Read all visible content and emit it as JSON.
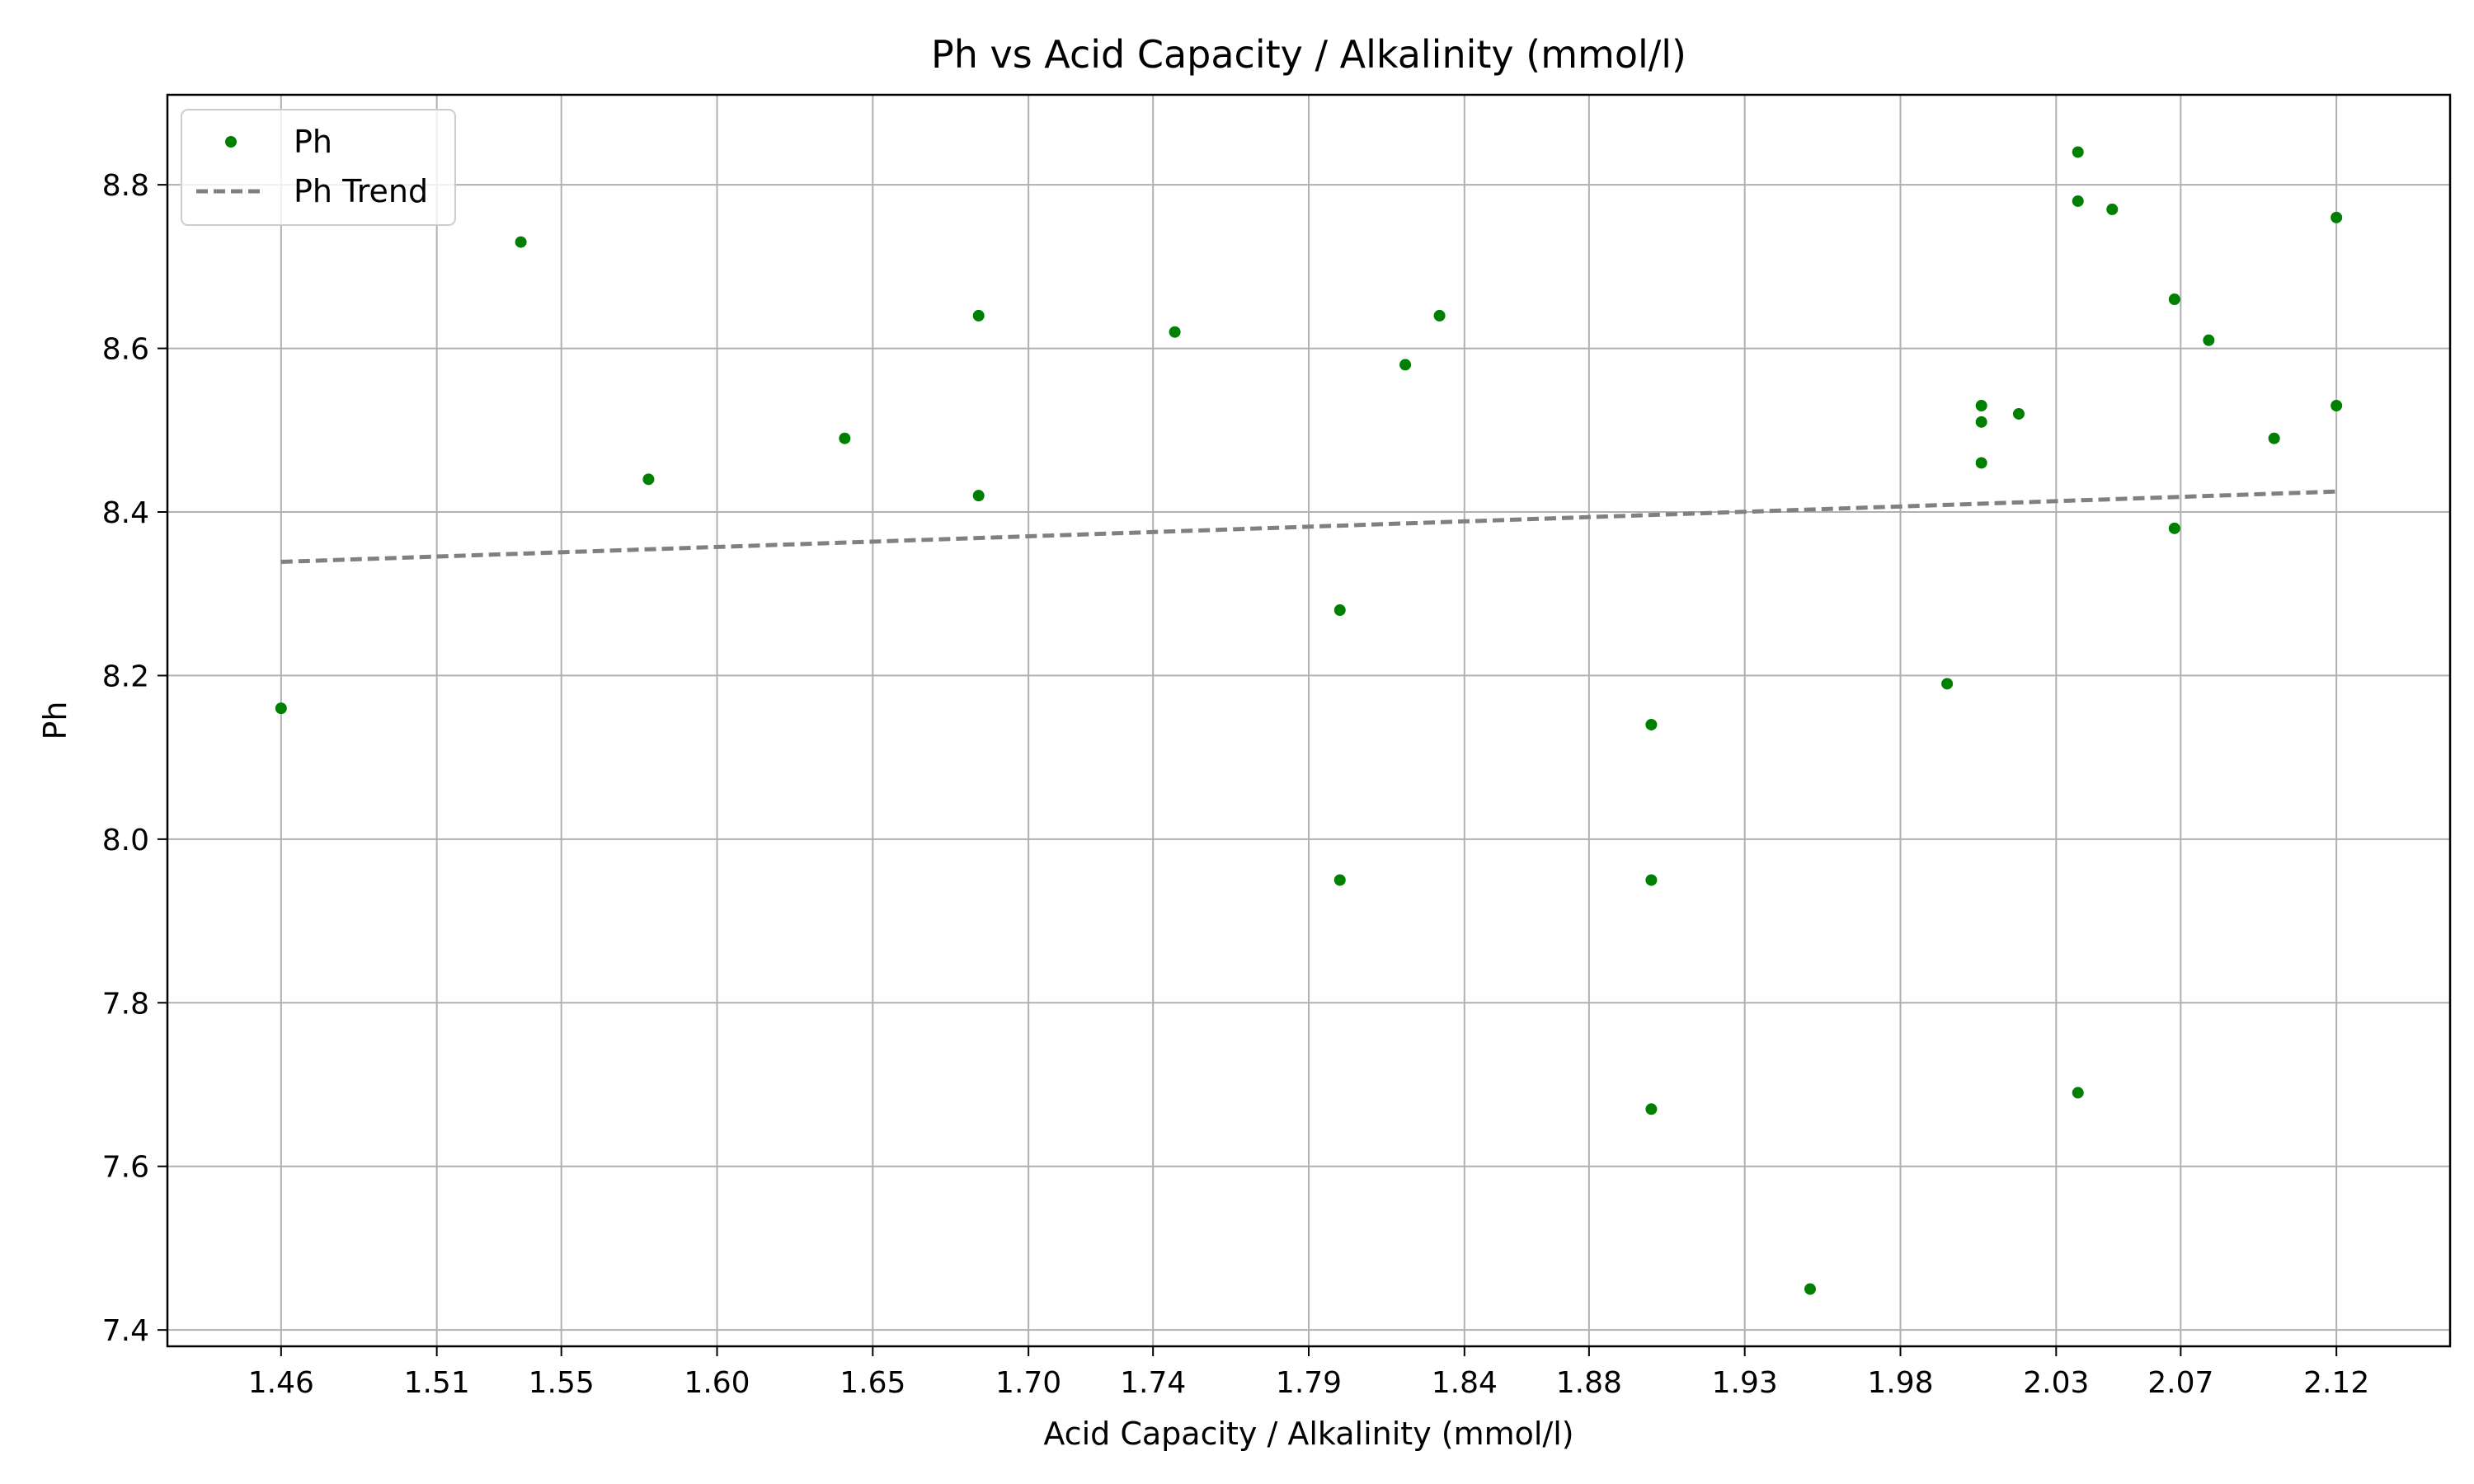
{
  "chart_data": {
    "type": "scatter",
    "title": "Ph vs Acid Capacity / Alkalinity (mmol/l)",
    "xlabel": "Acid Capacity / Alkalinity (mmol/l)",
    "ylabel": "Ph",
    "xlim": [
      1.4235,
      2.1565
    ],
    "ylim": [
      7.38,
      8.91
    ],
    "xticks": [
      1.46,
      1.51,
      1.55,
      1.6,
      1.65,
      1.7,
      1.74,
      1.79,
      1.84,
      1.88,
      1.93,
      1.98,
      2.03,
      2.07,
      2.12
    ],
    "xtick_labels": [
      "1.46",
      "1.51",
      "1.55",
      "1.60",
      "1.65",
      "1.70",
      "1.74",
      "1.79",
      "1.84",
      "1.88",
      "1.93",
      "1.98",
      "2.03",
      "2.07",
      "2.12"
    ],
    "yticks": [
      7.4,
      7.6,
      7.8,
      8.0,
      8.2,
      8.4,
      8.6,
      8.8
    ],
    "ytick_labels": [
      "7.4",
      "7.6",
      "7.8",
      "8.0",
      "8.2",
      "8.4",
      "8.6",
      "8.8"
    ],
    "grid": true,
    "legend_position": "top-left",
    "series": [
      {
        "name": "Ph",
        "kind": "scatter",
        "color": "#008000",
        "points": [
          [
            1.46,
            8.16
          ],
          [
            1.537,
            8.73
          ],
          [
            1.578,
            8.44
          ],
          [
            1.641,
            8.49
          ],
          [
            1.684,
            8.64
          ],
          [
            1.684,
            8.42
          ],
          [
            1.747,
            8.62
          ],
          [
            1.8,
            8.28
          ],
          [
            1.8,
            7.95
          ],
          [
            1.821,
            8.58
          ],
          [
            1.832,
            8.64
          ],
          [
            1.9,
            8.14
          ],
          [
            1.9,
            7.95
          ],
          [
            1.9,
            7.67
          ],
          [
            1.951,
            7.45
          ],
          [
            1.995,
            8.19
          ],
          [
            2.006,
            8.53
          ],
          [
            2.006,
            8.51
          ],
          [
            2.006,
            8.46
          ],
          [
            2.018,
            8.52
          ],
          [
            2.037,
            8.84
          ],
          [
            2.037,
            8.78
          ],
          [
            2.037,
            7.69
          ],
          [
            2.048,
            8.77
          ],
          [
            2.068,
            8.66
          ],
          [
            2.068,
            8.38
          ],
          [
            2.079,
            8.61
          ],
          [
            2.1,
            8.49
          ],
          [
            2.12,
            8.76
          ],
          [
            2.12,
            8.53
          ]
        ]
      },
      {
        "name": "Ph Trend",
        "kind": "line",
        "style": "dashed",
        "color": "#808080",
        "points": [
          [
            1.46,
            8.339
          ],
          [
            2.12,
            8.425
          ]
        ]
      }
    ]
  }
}
